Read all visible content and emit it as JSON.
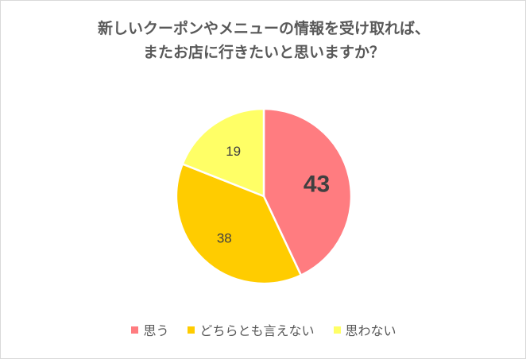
{
  "chart_data": {
    "type": "pie",
    "title_lines": [
      "新しいクーポンやメニューの情報を受け取れば、",
      "またお店に行きたいと思いますか？"
    ],
    "categories": [
      "思う",
      "どちらとも言えない",
      "思わない"
    ],
    "values": [
      43,
      38,
      19
    ],
    "colors": [
      "#ff7c80",
      "#ffcc00",
      "#ffff66"
    ],
    "data_labels": [
      "43",
      "38",
      "19"
    ],
    "start_angle": "12 o'clock",
    "direction": "clockwise",
    "legend_position": "bottom"
  }
}
